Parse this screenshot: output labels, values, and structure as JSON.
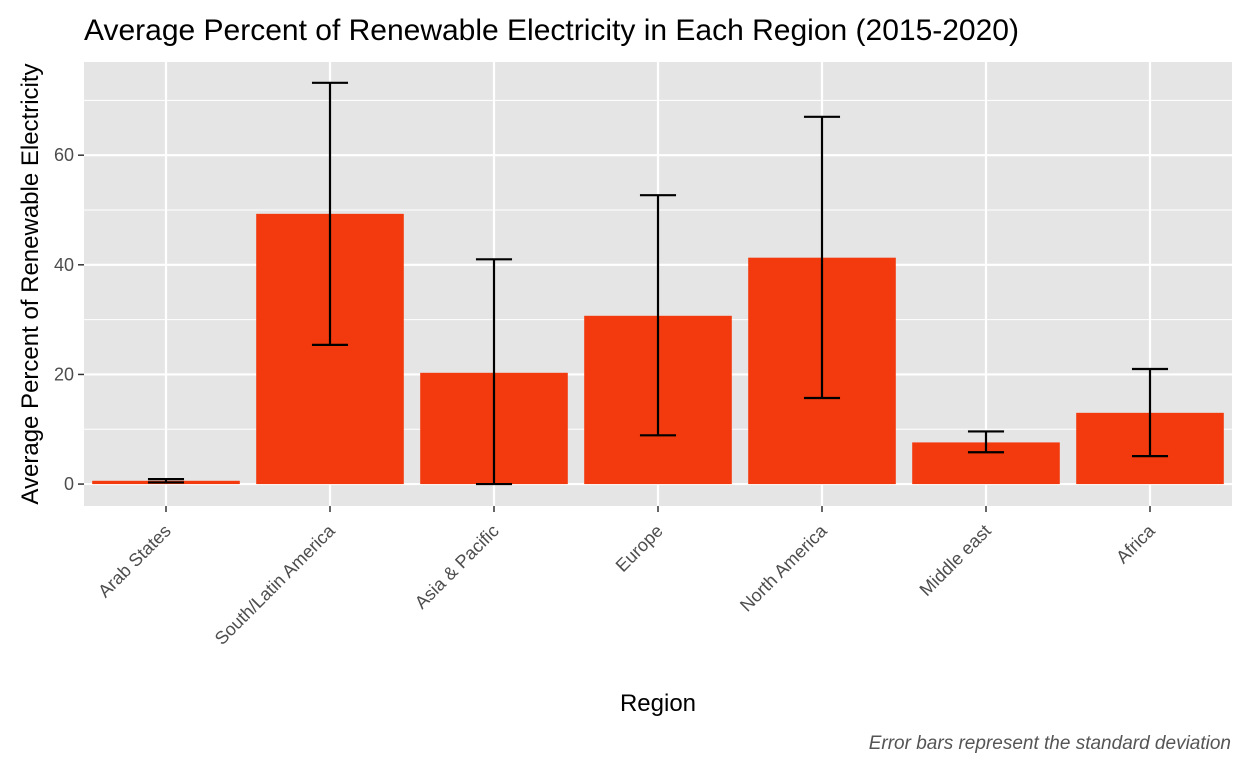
{
  "chart_data": {
    "type": "bar",
    "title": "Average Percent of Renewable Electricity in Each Region (2015-2020)",
    "xlabel": "Region",
    "ylabel": "Average Percent of Renewable Electricity",
    "caption": "Error bars represent the standard deviation",
    "categories": [
      "Arab States",
      "South/Latin America",
      "Asia & Pacific",
      "Europe",
      "North America",
      "Middle east",
      "Africa"
    ],
    "values": [
      0.6,
      49.3,
      20.3,
      30.7,
      41.3,
      7.6,
      13.0
    ],
    "error_low": [
      0.3,
      25.4,
      0.0,
      8.9,
      15.7,
      5.8,
      5.1
    ],
    "error_high": [
      0.9,
      73.2,
      41.0,
      52.7,
      67.0,
      9.6,
      21.0
    ],
    "ylim": [
      -4,
      77
    ],
    "yticks": [
      0,
      20,
      40,
      60
    ],
    "grid": true,
    "bar_color": "#F33A0E",
    "panel_color": "#E5E5E5",
    "error_bar_color": "#000000"
  }
}
